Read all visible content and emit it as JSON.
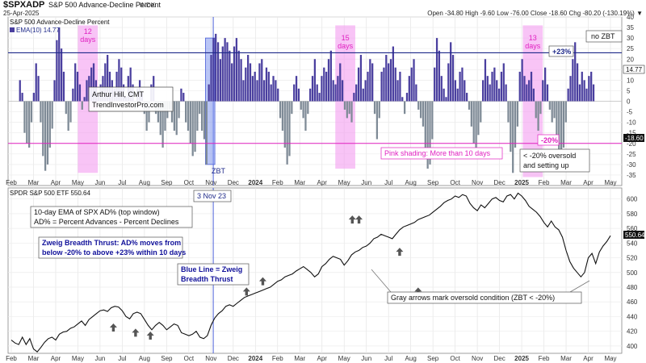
{
  "header": {
    "symbol": "$SPXADP",
    "name": "S&P 500 Advance-Decline Percent",
    "exchange": "INDX",
    "date": "25-Apr-2025",
    "quote": "Open -34.80  High -9.60  Low -76.00  Close -18.60  Chg -80.20 (-130.19%) ▼",
    "brand": "© StockCharts.com"
  },
  "colors": {
    "pos_bar": "#4a3f9f",
    "neg_bar": "#7e8a96",
    "shade": "#f39cf0",
    "price": "#111111",
    "zbt": "#4a5fd8",
    "pink": "#e020c0",
    "navy": "#1f2a8a"
  },
  "top_panel": {
    "series_name": "S&P 500 Advance-Decline Percent",
    "ema_label": "EMA(10) 14.77",
    "y_ticks": [
      "40",
      "35",
      "30",
      "25",
      "20",
      "15",
      "10",
      "5",
      "0",
      "-5",
      "-10",
      "-15",
      "-20",
      "-25",
      "-30",
      "-35"
    ],
    "current_value": "14.77",
    "close_value": "-18.60",
    "thresholds": {
      "upper": 23,
      "lower": -20
    },
    "upper_label": "+23%",
    "lower_label": "-20%",
    "shade_notes": [
      "12 days",
      "15 days",
      "13 days"
    ],
    "zbt_label": "ZBT",
    "no_zbt": "no ZBT",
    "author_lines": [
      "Arthur Hill, CMT",
      "TrendInvestorPro.com"
    ],
    "pink_note": "Pink shading: More than 10 days",
    "oversold_lines": [
      "< -20% oversold",
      "and setting up"
    ]
  },
  "bottom_panel": {
    "series_label": "SPDR S&P 500 ETF 550.64",
    "last_value": "550.64",
    "y_ticks": [
      "600",
      "580",
      "560",
      "540",
      "520",
      "500",
      "480",
      "460",
      "440",
      "420",
      "400"
    ],
    "date_label": "3 Nov 23",
    "ema_note_lines": [
      "10-day EMA of SPX AD% (top window)",
      "AD% = Percent Advances - Percent Declines"
    ],
    "zweig_lines": [
      "Zweig Breadth Thrust: AD% moves from",
      "below -20% to above +23% within 10 days"
    ],
    "blue_line_lines": [
      "Blue Line = Zweig",
      "Breadth Thrust"
    ],
    "gray_note": "Gray arrows mark oversold condition (ZBT < -20%)"
  },
  "x_axis_labels": [
    "Feb",
    "Mar",
    "Apr",
    "May",
    "Jun",
    "Jul",
    "Aug",
    "Sep",
    "Oct",
    "Nov",
    "Dec",
    "2024",
    "Feb",
    "Mar",
    "Apr",
    "May",
    "Jun",
    "Jul",
    "Aug",
    "Sep",
    "Oct",
    "Nov",
    "Dec",
    "2025",
    "Feb",
    "Mar",
    "Apr",
    "May"
  ],
  "chart_data": [
    {
      "type": "bar",
      "title": "S&P 500 Advance-Decline Percent (10-day EMA)",
      "x_range": [
        "2023-02",
        "2025-05"
      ],
      "ylim": [
        -40,
        40
      ],
      "reference_lines": [
        23,
        -20
      ],
      "zbt_date": "2023-11-03",
      "shaded_periods": [
        {
          "label": "12 days",
          "x": 3.45,
          "min": -34
        },
        {
          "label": "15 days",
          "x": 15.05,
          "min": -32
        },
        {
          "label": "13 days",
          "x": 23.5,
          "min": -36
        }
      ],
      "values": [
        10,
        4,
        -15,
        -20,
        -22,
        -10,
        4,
        18,
        12,
        -10,
        -26,
        -33,
        -30,
        -22,
        -13,
        10,
        29,
        35,
        25,
        14,
        -6,
        -14,
        -10,
        6,
        18,
        14,
        8,
        -4,
        2,
        10,
        12,
        16,
        18,
        10,
        4,
        8,
        12,
        18,
        22,
        14,
        10,
        6,
        14,
        20,
        16,
        8,
        2,
        12,
        16,
        8,
        -4,
        6,
        10,
        4,
        -6,
        -14,
        -10,
        8,
        12,
        -6,
        -10,
        -16,
        -22,
        -14,
        -8,
        -4,
        -10,
        -14,
        -16,
        -8,
        6,
        4,
        -10,
        -14,
        -20,
        -26,
        -24,
        -14,
        -6,
        -14,
        -18,
        -30,
        8,
        22,
        30,
        32,
        28,
        20,
        26,
        30,
        28,
        24,
        18,
        26,
        30,
        24,
        20,
        10,
        16,
        22,
        18,
        12,
        14,
        10,
        18,
        20,
        10,
        16,
        14,
        8,
        12,
        10,
        6,
        -8,
        -14,
        -22,
        -30,
        -26,
        -6,
        8,
        12,
        6,
        -4,
        -8,
        -14,
        -6,
        6,
        12,
        20,
        8,
        4,
        12,
        16,
        14,
        20,
        24,
        10,
        8,
        12,
        18,
        10,
        -4,
        -8,
        -6,
        -10,
        4,
        8,
        16,
        22,
        6,
        10,
        14,
        20,
        18,
        -6,
        -18,
        -8,
        14,
        16,
        22,
        18,
        20,
        26,
        16,
        10,
        14,
        2,
        -6,
        4,
        12,
        16,
        20,
        8,
        -4,
        -8,
        -12,
        -24,
        -32,
        -30,
        -18,
        16,
        30,
        24,
        12,
        6,
        2,
        18,
        28,
        22,
        10,
        6,
        14,
        16,
        10,
        4,
        -4,
        -12,
        -20,
        -26,
        -16,
        -10,
        10,
        20,
        12,
        8,
        14,
        16,
        10,
        6,
        14,
        18,
        8,
        -10,
        -24,
        -34,
        -22,
        -12,
        14,
        20,
        12,
        8,
        10,
        14,
        6,
        -8,
        -14,
        -6,
        10,
        16,
        8,
        -4,
        -10,
        -8,
        -16,
        -24,
        -30,
        -22,
        -10,
        6,
        12,
        20,
        28,
        18,
        8,
        14,
        10,
        6,
        12,
        14,
        8
      ]
    },
    {
      "type": "line",
      "title": "SPDR S&P 500 ETF",
      "x_range": [
        "2023-02",
        "2025-05"
      ],
      "ylim": [
        390,
        615
      ],
      "path": [
        [
          0.0,
          408
        ],
        [
          0.5,
          404
        ],
        [
          1.0,
          402
        ],
        [
          1.5,
          412
        ],
        [
          2.0,
          402
        ],
        [
          2.5,
          410
        ],
        [
          3.0,
          396
        ],
        [
          3.5,
          392
        ],
        [
          4.0,
          398
        ],
        [
          4.5,
          405
        ],
        [
          5.0,
          410
        ],
        [
          5.5,
          412
        ],
        [
          6.0,
          408
        ],
        [
          6.5,
          416
        ],
        [
          7.0,
          419
        ],
        [
          7.5,
          420
        ],
        [
          8.0,
          424
        ],
        [
          8.5,
          426
        ],
        [
          9.0,
          430
        ],
        [
          9.5,
          434
        ],
        [
          10.0,
          428
        ],
        [
          10.5,
          436
        ],
        [
          11.0,
          440
        ],
        [
          11.5,
          444
        ],
        [
          12.0,
          448
        ],
        [
          12.5,
          449
        ],
        [
          13.0,
          447
        ],
        [
          13.5,
          452
        ],
        [
          14.0,
          454
        ],
        [
          14.5,
          453
        ],
        [
          15.0,
          448
        ],
        [
          15.5,
          440
        ],
        [
          16.0,
          437
        ],
        [
          16.5,
          444
        ],
        [
          17.0,
          446
        ],
        [
          17.5,
          444
        ],
        [
          18.0,
          436
        ],
        [
          18.5,
          428
        ],
        [
          19.0,
          422
        ],
        [
          19.5,
          428
        ],
        [
          20.0,
          432
        ],
        [
          20.5,
          428
        ],
        [
          21.0,
          422
        ],
        [
          21.5,
          426
        ],
        [
          22.0,
          430
        ],
        [
          22.5,
          428
        ],
        [
          23.0,
          418
        ],
        [
          23.5,
          416
        ],
        [
          24.0,
          414
        ],
        [
          24.5,
          416
        ],
        [
          25.0,
          420
        ],
        [
          25.5,
          412
        ],
        [
          26.0,
          410
        ],
        [
          26.5,
          414
        ],
        [
          27.0,
          428
        ],
        [
          27.5,
          438
        ],
        [
          28.0,
          444
        ],
        [
          28.5,
          448
        ],
        [
          29.0,
          454
        ],
        [
          29.5,
          456
        ],
        [
          30.0,
          454
        ],
        [
          30.5,
          458
        ],
        [
          31.0,
          462
        ],
        [
          31.5,
          466
        ],
        [
          32.0,
          468
        ],
        [
          32.5,
          470
        ],
        [
          33.0,
          472
        ],
        [
          33.5,
          474
        ],
        [
          34.0,
          476
        ],
        [
          34.5,
          478
        ],
        [
          35.0,
          480
        ],
        [
          35.5,
          484
        ],
        [
          36.0,
          488
        ],
        [
          36.5,
          490
        ],
        [
          37.0,
          494
        ],
        [
          37.5,
          496
        ],
        [
          38.0,
          498
        ],
        [
          38.5,
          502
        ],
        [
          39.0,
          505
        ],
        [
          39.5,
          508
        ],
        [
          40.0,
          504
        ],
        [
          40.5,
          500
        ],
        [
          41.0,
          494
        ],
        [
          41.5,
          498
        ],
        [
          42.0,
          508
        ],
        [
          42.5,
          512
        ],
        [
          43.0,
          518
        ],
        [
          43.5,
          522
        ],
        [
          44.0,
          520
        ],
        [
          44.5,
          518
        ],
        [
          45.0,
          510
        ],
        [
          45.5,
          516
        ],
        [
          46.0,
          524
        ],
        [
          46.5,
          528
        ],
        [
          47.0,
          530
        ],
        [
          47.5,
          534
        ],
        [
          48.0,
          536
        ],
        [
          48.5,
          540
        ],
        [
          49.0,
          546
        ],
        [
          49.5,
          548
        ],
        [
          50.0,
          552
        ],
        [
          50.5,
          550
        ],
        [
          51.0,
          548
        ],
        [
          51.5,
          546
        ],
        [
          52.0,
          552
        ],
        [
          52.5,
          558
        ],
        [
          53.0,
          562
        ],
        [
          53.5,
          564
        ],
        [
          54.0,
          566
        ],
        [
          54.5,
          568
        ],
        [
          55.0,
          572
        ],
        [
          55.5,
          574
        ],
        [
          56.0,
          576
        ],
        [
          56.5,
          578
        ],
        [
          57.0,
          582
        ],
        [
          57.5,
          586
        ],
        [
          58.0,
          590
        ],
        [
          58.5,
          595
        ],
        [
          59.0,
          598
        ],
        [
          59.5,
          600
        ],
        [
          60.0,
          604
        ],
        [
          60.5,
          602
        ],
        [
          61.0,
          606
        ],
        [
          61.5,
          604
        ],
        [
          62.0,
          594
        ],
        [
          62.5,
          588
        ],
        [
          63.0,
          584
        ],
        [
          63.5,
          592
        ],
        [
          64.0,
          588
        ],
        [
          64.5,
          594
        ],
        [
          65.0,
          600
        ],
        [
          65.5,
          602
        ],
        [
          66.0,
          598
        ],
        [
          66.5,
          596
        ],
        [
          67.0,
          604
        ],
        [
          67.5,
          606
        ],
        [
          68.0,
          600
        ],
        [
          68.5,
          608
        ],
        [
          69.0,
          604
        ],
        [
          69.5,
          598
        ],
        [
          70.0,
          590
        ],
        [
          70.5,
          586
        ],
        [
          71.0,
          582
        ],
        [
          71.5,
          576
        ],
        [
          72.0,
          568
        ],
        [
          72.5,
          562
        ],
        [
          73.0,
          570
        ],
        [
          73.5,
          562
        ],
        [
          74.0,
          558
        ],
        [
          74.5,
          548
        ],
        [
          75.0,
          530
        ],
        [
          75.5,
          515
        ],
        [
          76.0,
          506
        ],
        [
          76.5,
          500
        ],
        [
          77.0,
          494
        ],
        [
          77.5,
          500
        ],
        [
          78.0,
          520
        ],
        [
          78.5,
          526
        ],
        [
          79.0,
          512
        ],
        [
          79.5,
          528
        ],
        [
          80.0,
          536
        ],
        [
          80.5,
          542
        ],
        [
          81.0,
          550
        ]
      ],
      "arrow_markers": [
        [
          13.8,
          435
        ],
        [
          16.8,
          428
        ],
        [
          18.8,
          424
        ],
        [
          31.8,
          484
        ],
        [
          34.0,
          498
        ],
        [
          46.1,
          582
        ],
        [
          47.0,
          582
        ],
        [
          52.5,
          538
        ],
        [
          55.0,
          484
        ]
      ]
    }
  ]
}
